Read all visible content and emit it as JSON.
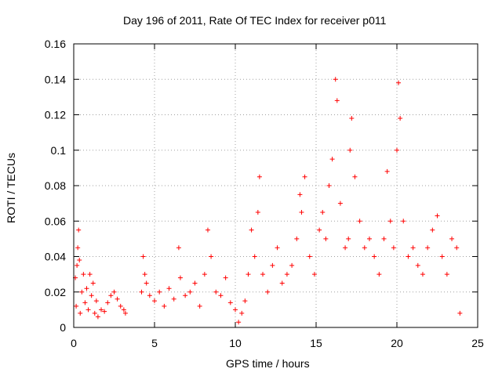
{
  "chart_data": {
    "type": "scatter",
    "title": "Day 196 of 2011, Rate Of TEC Index for receiver p011",
    "xlabel": "GPS time / hours",
    "ylabel": "ROTI / TECUs",
    "xlim": [
      0,
      25
    ],
    "ylim": [
      0,
      0.16
    ],
    "grid": true,
    "marker": "+",
    "color": "#ff0000",
    "xticks": [
      0,
      5,
      10,
      15,
      20,
      25
    ],
    "xtick_labels": [
      "0",
      "5",
      "10",
      "15",
      "20",
      "25"
    ],
    "yticks": [
      0,
      0.02,
      0.04,
      0.06,
      0.08,
      0.1,
      0.12,
      0.14,
      0.16
    ],
    "ytick_labels": [
      "0",
      "0.02",
      "0.04",
      "0.06",
      "0.08",
      "0.1",
      "0.12",
      "0.14",
      "0.16"
    ],
    "series": [
      {
        "name": "ROTI",
        "points": [
          [
            0.1,
            0.028
          ],
          [
            0.15,
            0.012
          ],
          [
            0.2,
            0.035
          ],
          [
            0.25,
            0.045
          ],
          [
            0.3,
            0.055
          ],
          [
            0.35,
            0.038
          ],
          [
            0.4,
            0.008
          ],
          [
            0.5,
            0.02
          ],
          [
            0.6,
            0.03
          ],
          [
            0.7,
            0.014
          ],
          [
            0.8,
            0.022
          ],
          [
            0.9,
            0.01
          ],
          [
            1.0,
            0.03
          ],
          [
            1.1,
            0.018
          ],
          [
            1.2,
            0.025
          ],
          [
            1.3,
            0.008
          ],
          [
            1.4,
            0.015
          ],
          [
            1.5,
            0.006
          ],
          [
            1.7,
            0.01
          ],
          [
            1.9,
            0.009
          ],
          [
            2.1,
            0.014
          ],
          [
            2.3,
            0.018
          ],
          [
            2.5,
            0.02
          ],
          [
            2.7,
            0.016
          ],
          [
            2.9,
            0.012
          ],
          [
            3.1,
            0.01
          ],
          [
            3.2,
            0.008
          ],
          [
            4.2,
            0.02
          ],
          [
            4.3,
            0.04
          ],
          [
            4.4,
            0.03
          ],
          [
            4.5,
            0.025
          ],
          [
            4.7,
            0.018
          ],
          [
            5.0,
            0.015
          ],
          [
            5.3,
            0.02
          ],
          [
            5.6,
            0.012
          ],
          [
            5.9,
            0.022
          ],
          [
            6.2,
            0.016
          ],
          [
            6.5,
            0.045
          ],
          [
            6.6,
            0.028
          ],
          [
            6.9,
            0.018
          ],
          [
            7.2,
            0.02
          ],
          [
            7.5,
            0.025
          ],
          [
            7.8,
            0.012
          ],
          [
            8.1,
            0.03
          ],
          [
            8.3,
            0.055
          ],
          [
            8.5,
            0.04
          ],
          [
            8.8,
            0.02
          ],
          [
            9.1,
            0.018
          ],
          [
            9.4,
            0.028
          ],
          [
            9.7,
            0.014
          ],
          [
            10.0,
            0.01
          ],
          [
            10.2,
            0.003
          ],
          [
            10.4,
            0.008
          ],
          [
            10.6,
            0.015
          ],
          [
            10.8,
            0.03
          ],
          [
            11.0,
            0.055
          ],
          [
            11.2,
            0.04
          ],
          [
            11.4,
            0.065
          ],
          [
            11.5,
            0.085
          ],
          [
            11.7,
            0.03
          ],
          [
            12.0,
            0.02
          ],
          [
            12.3,
            0.035
          ],
          [
            12.6,
            0.045
          ],
          [
            12.9,
            0.025
          ],
          [
            13.2,
            0.03
          ],
          [
            13.5,
            0.035
          ],
          [
            13.8,
            0.05
          ],
          [
            14.0,
            0.075
          ],
          [
            14.1,
            0.065
          ],
          [
            14.3,
            0.085
          ],
          [
            14.6,
            0.04
          ],
          [
            14.9,
            0.03
          ],
          [
            15.2,
            0.055
          ],
          [
            15.4,
            0.065
          ],
          [
            15.6,
            0.05
          ],
          [
            15.8,
            0.08
          ],
          [
            16.0,
            0.095
          ],
          [
            16.2,
            0.14
          ],
          [
            16.3,
            0.128
          ],
          [
            16.5,
            0.07
          ],
          [
            16.8,
            0.045
          ],
          [
            17.0,
            0.05
          ],
          [
            17.1,
            0.1
          ],
          [
            17.2,
            0.118
          ],
          [
            17.4,
            0.085
          ],
          [
            17.7,
            0.06
          ],
          [
            18.0,
            0.045
          ],
          [
            18.3,
            0.05
          ],
          [
            18.6,
            0.04
          ],
          [
            18.9,
            0.03
          ],
          [
            19.2,
            0.05
          ],
          [
            19.4,
            0.088
          ],
          [
            19.6,
            0.06
          ],
          [
            19.8,
            0.045
          ],
          [
            20.0,
            0.1
          ],
          [
            20.1,
            0.138
          ],
          [
            20.2,
            0.118
          ],
          [
            20.4,
            0.06
          ],
          [
            20.7,
            0.04
          ],
          [
            21.0,
            0.045
          ],
          [
            21.3,
            0.035
          ],
          [
            21.6,
            0.03
          ],
          [
            21.9,
            0.045
          ],
          [
            22.2,
            0.055
          ],
          [
            22.5,
            0.063
          ],
          [
            22.8,
            0.04
          ],
          [
            23.1,
            0.03
          ],
          [
            23.4,
            0.05
          ],
          [
            23.7,
            0.045
          ],
          [
            23.9,
            0.008
          ]
        ]
      }
    ]
  }
}
